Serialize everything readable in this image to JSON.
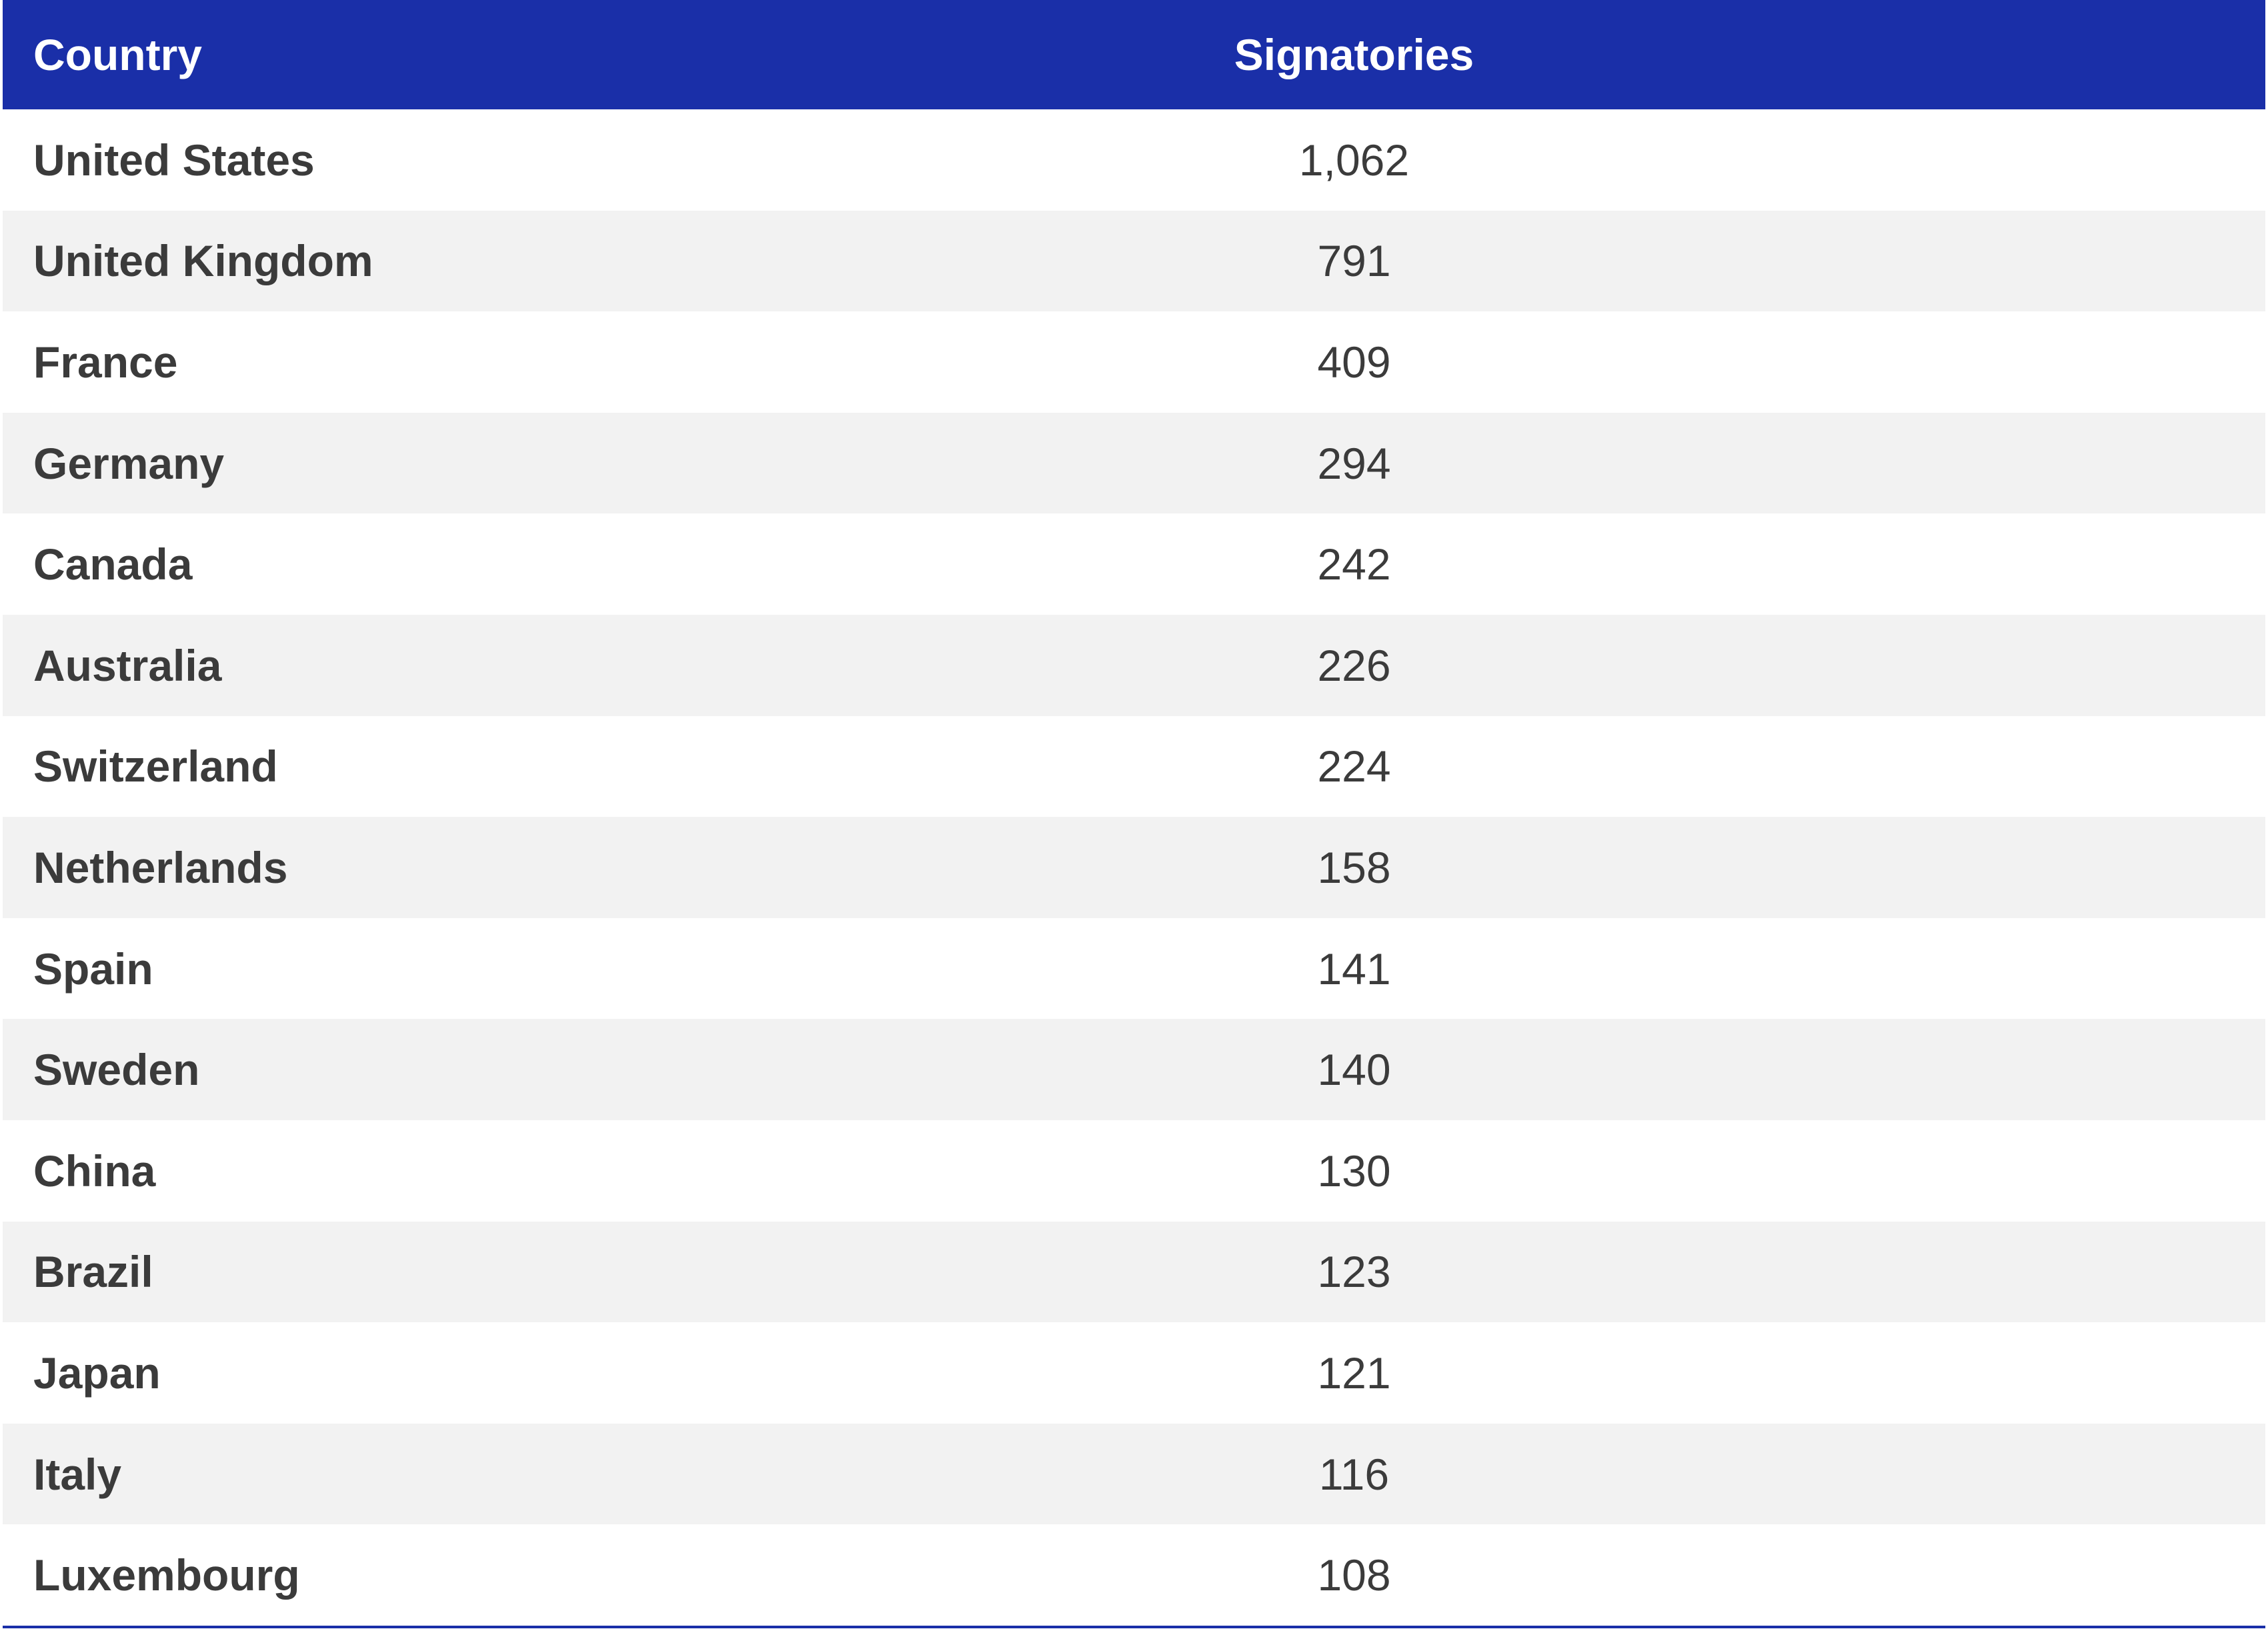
{
  "colors": {
    "header_bg": "#1a2fa8",
    "header_text": "#ffffff",
    "row_alt_bg": "#f2f2f2",
    "row_bg": "#ffffff",
    "body_text": "#3b3b3b"
  },
  "chart_data": {
    "type": "table",
    "columns": [
      "Country",
      "Signatories"
    ],
    "rows": [
      {
        "country": "United States",
        "signatories": "1,062"
      },
      {
        "country": "United Kingdom",
        "signatories": "791"
      },
      {
        "country": "France",
        "signatories": "409"
      },
      {
        "country": "Germany",
        "signatories": "294"
      },
      {
        "country": "Canada",
        "signatories": "242"
      },
      {
        "country": "Australia",
        "signatories": "226"
      },
      {
        "country": "Switzerland",
        "signatories": "224"
      },
      {
        "country": "Netherlands",
        "signatories": "158"
      },
      {
        "country": "Spain",
        "signatories": "141"
      },
      {
        "country": "Sweden",
        "signatories": "140"
      },
      {
        "country": "China",
        "signatories": "130"
      },
      {
        "country": "Brazil",
        "signatories": "123"
      },
      {
        "country": "Japan",
        "signatories": "121"
      },
      {
        "country": "Italy",
        "signatories": "116"
      },
      {
        "country": "Luxembourg",
        "signatories": "108"
      }
    ]
  }
}
